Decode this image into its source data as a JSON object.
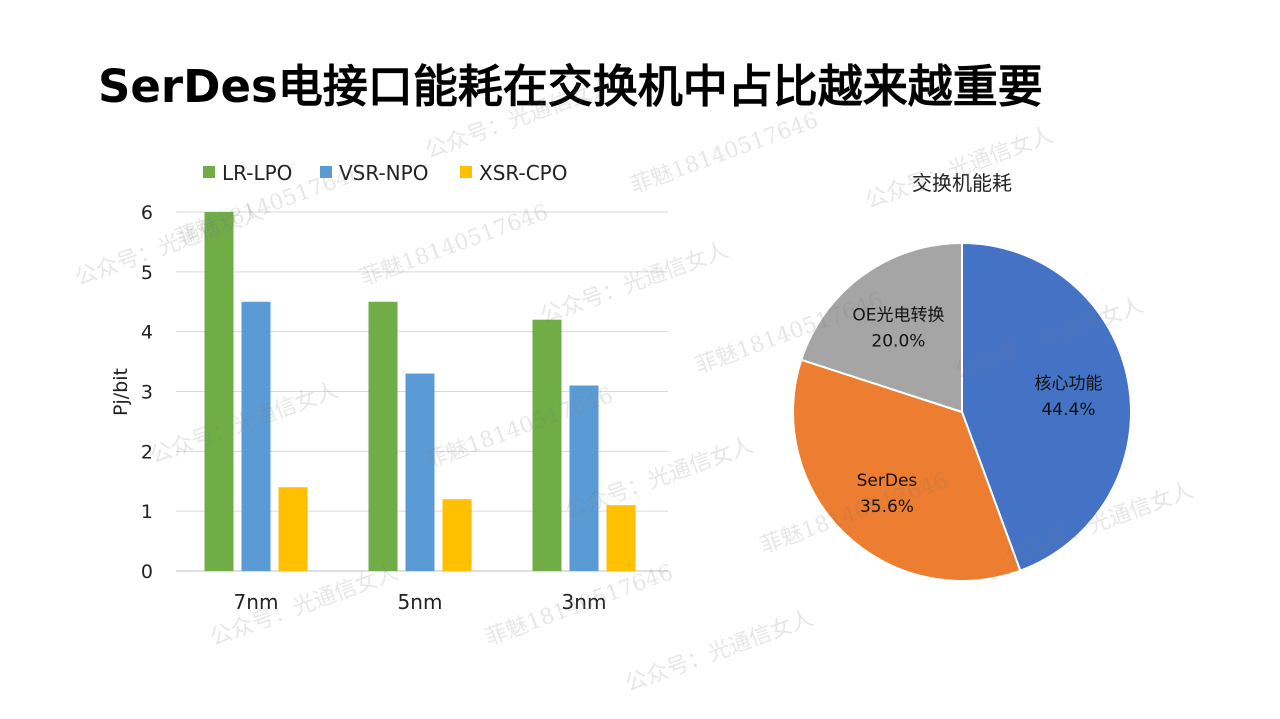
{
  "slide": {
    "title": "SerDes电接口能耗在交换机中占比越来越重要"
  },
  "colors": {
    "LR-LPO": "#70ad47",
    "VSR-NPO": "#5b9bd5",
    "XSR-CPO": "#ffc000",
    "核心功能": "#4472c4",
    "SerDes": "#ed7d31",
    "OE光电转换": "#a5a5a5"
  },
  "watermarks": [
    "公众号：光通信女人",
    "菲魅18140517646"
  ],
  "chart_data": [
    {
      "type": "bar",
      "title": "",
      "xlabel": "",
      "ylabel": "Pj/bit",
      "ylim": [
        0,
        6
      ],
      "yticks": [
        "0",
        "1",
        "2",
        "3",
        "4",
        "5",
        "6"
      ],
      "grid": true,
      "legend_position": "top",
      "categories": [
        "7nm",
        "5nm",
        "3nm"
      ],
      "series": [
        {
          "name": "LR-LPO",
          "values": [
            6.0,
            4.5,
            4.2
          ]
        },
        {
          "name": "VSR-NPO",
          "values": [
            4.5,
            3.3,
            3.1
          ]
        },
        {
          "name": "XSR-CPO",
          "values": [
            1.4,
            1.2,
            1.1
          ]
        }
      ]
    },
    {
      "type": "pie",
      "title": "交换机能耗",
      "slices": [
        {
          "label": "核心功能",
          "value": 44.4,
          "display": "44.4%"
        },
        {
          "label": "SerDes",
          "value": 35.6,
          "display": "35.6%"
        },
        {
          "label": "OE光电转换",
          "value": 20.0,
          "display": "20.0%"
        }
      ]
    }
  ]
}
